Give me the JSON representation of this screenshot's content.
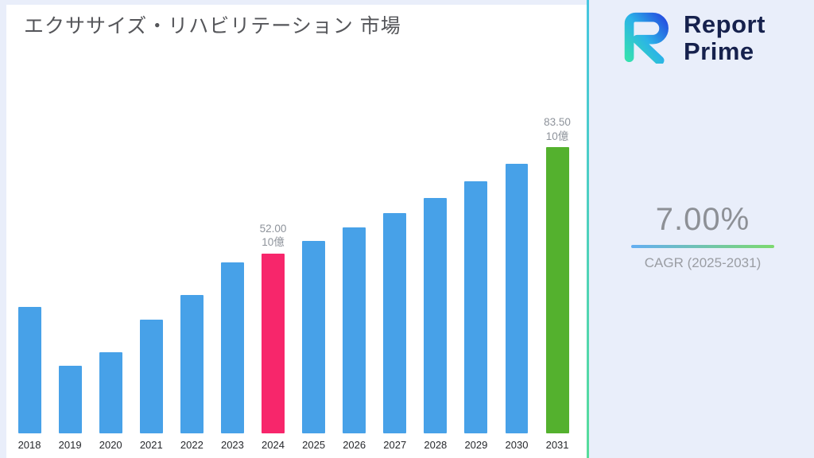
{
  "header": {
    "title": "エクササイズ・リハビリテーション 市場"
  },
  "brand": {
    "line1": "Report",
    "line2": "Prime"
  },
  "cagr": {
    "value": "7.00%",
    "label": "CAGR (2025-2031)"
  },
  "chart_data": {
    "type": "bar",
    "title": "エクササイズ・リハビリテーション 市場",
    "categories": [
      2018,
      2019,
      2020,
      2021,
      2022,
      2023,
      2024,
      2025,
      2026,
      2027,
      2028,
      2029,
      2030,
      2031
    ],
    "values": [
      36.5,
      19.5,
      23.5,
      33,
      40,
      49.5,
      52,
      55.64,
      59.53,
      63.7,
      68.16,
      72.93,
      78.03,
      83.5
    ],
    "unit": "10億",
    "annotations": {
      "2024": "52.00",
      "2031": "83.50"
    },
    "bar_colors": {
      "default": "#47a1e8",
      "2024": "#f7266b",
      "2031": "#54b12e"
    },
    "ylim": [
      0,
      92
    ],
    "xlabel": "",
    "ylabel": "",
    "legend": "none",
    "grid": "off"
  },
  "colors": {
    "background": "#e9eefa",
    "card": "#ffffff",
    "accent_blue": "#64aef2",
    "accent_green": "#7cd96e",
    "brand_navy": "#16214d",
    "divider_teal": "#45c6e0"
  }
}
